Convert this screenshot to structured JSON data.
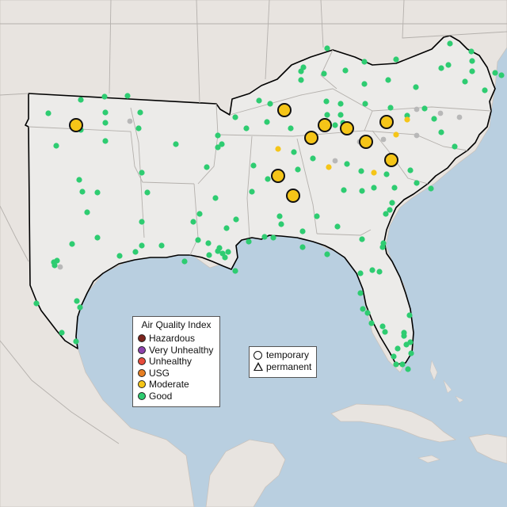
{
  "colors": {
    "water": "#b9cfe0",
    "land_outside": "#e8e4e0",
    "land_region": "#ecebe9",
    "good": "#2ecc71",
    "moderate": "#f5c518",
    "nodata": "#b8b8b8",
    "hazardous": "#7b241c",
    "very_unhealthy": "#8e44ad",
    "unhealthy": "#e74c3c",
    "usg": "#e67e22"
  },
  "legend": {
    "title": "Air Quality Index",
    "items": [
      {
        "label": "Hazardous",
        "color": "#7b241c"
      },
      {
        "label": "Very Unhealthy",
        "color": "#8e44ad"
      },
      {
        "label": "Unhealthy",
        "color": "#e74c3c"
      },
      {
        "label": "USG",
        "color": "#e67e22"
      },
      {
        "label": "Moderate",
        "color": "#f5c518"
      },
      {
        "label": "Good",
        "color": "#2ecc71"
      }
    ]
  },
  "monitor_types": {
    "temporary": "temporary",
    "permanent": "permanent"
  },
  "moderate_large": [
    [
      96,
      158
    ],
    [
      359,
      139
    ],
    [
      393,
      174
    ],
    [
      410,
      158
    ],
    [
      438,
      162
    ],
    [
      462,
      179
    ],
    [
      488,
      154
    ],
    [
      494,
      202
    ],
    [
      351,
      222
    ],
    [
      370,
      247
    ]
  ],
  "moderate_small": [
    [
      351,
      188
    ],
    [
      415,
      211
    ],
    [
      472,
      218
    ],
    [
      500,
      170
    ],
    [
      514,
      151
    ]
  ],
  "gray": [
    [
      164,
      153
    ],
    [
      76,
      337
    ],
    [
      423,
      203
    ],
    [
      454,
      179
    ],
    [
      484,
      176
    ],
    [
      556,
      143
    ],
    [
      580,
      148
    ],
    [
      526,
      171
    ],
    [
      526,
      138
    ]
  ],
  "good": [
    [
      132,
      122
    ],
    [
      161,
      121
    ],
    [
      102,
      126
    ],
    [
      61,
      143
    ],
    [
      133,
      142
    ],
    [
      177,
      142
    ],
    [
      133,
      155
    ],
    [
      102,
      164
    ],
    [
      71,
      184
    ],
    [
      133,
      178
    ],
    [
      175,
      162
    ],
    [
      222,
      182
    ],
    [
      179,
      218
    ],
    [
      100,
      227
    ],
    [
      104,
      242
    ],
    [
      123,
      243
    ],
    [
      186,
      243
    ],
    [
      110,
      268
    ],
    [
      179,
      280
    ],
    [
      123,
      300
    ],
    [
      179,
      310
    ],
    [
      91,
      308
    ],
    [
      151,
      323
    ],
    [
      171,
      318
    ],
    [
      204,
      310
    ],
    [
      233,
      330
    ],
    [
      250,
      303
    ],
    [
      263,
      307
    ],
    [
      72,
      329
    ],
    [
      68,
      331
    ],
    [
      69,
      335
    ],
    [
      46,
      383
    ],
    [
      97,
      380
    ],
    [
      101,
      388
    ],
    [
      78,
      420
    ],
    [
      96,
      431
    ],
    [
      261,
      211
    ],
    [
      275,
      171
    ],
    [
      280,
      182
    ],
    [
      275,
      186
    ],
    [
      297,
      148
    ],
    [
      311,
      162
    ],
    [
      327,
      127
    ],
    [
      341,
      131
    ],
    [
      380,
      101
    ],
    [
      380,
      90
    ],
    [
      383,
      85
    ],
    [
      409,
      93
    ],
    [
      413,
      61
    ],
    [
      436,
      89
    ],
    [
      460,
      106
    ],
    [
      460,
      78
    ],
    [
      500,
      75
    ],
    [
      490,
      101
    ],
    [
      568,
      55
    ],
    [
      595,
      65
    ],
    [
      596,
      77
    ],
    [
      596,
      90
    ],
    [
      587,
      103
    ],
    [
      612,
      114
    ],
    [
      625,
      92
    ],
    [
      633,
      95
    ],
    [
      566,
      82
    ],
    [
      525,
      110
    ],
    [
      557,
      86
    ],
    [
      412,
      128
    ],
    [
      430,
      131
    ],
    [
      461,
      131
    ],
    [
      493,
      136
    ],
    [
      514,
      146
    ],
    [
      536,
      137
    ],
    [
      548,
      150
    ],
    [
      557,
      167
    ],
    [
      574,
      185
    ],
    [
      518,
      215
    ],
    [
      544,
      238
    ],
    [
      526,
      231
    ],
    [
      488,
      220
    ],
    [
      456,
      216
    ],
    [
      438,
      207
    ],
    [
      395,
      200
    ],
    [
      376,
      214
    ],
    [
      337,
      154
    ],
    [
      413,
      145
    ],
    [
      367,
      162
    ],
    [
      371,
      192
    ],
    [
      320,
      209
    ],
    [
      318,
      242
    ],
    [
      338,
      226
    ],
    [
      272,
      250
    ],
    [
      298,
      277
    ],
    [
      252,
      270
    ],
    [
      244,
      280
    ],
    [
      275,
      317
    ],
    [
      277,
      313
    ],
    [
      281,
      320
    ],
    [
      288,
      318
    ],
    [
      297,
      342
    ],
    [
      286,
      288
    ],
    [
      284,
      325
    ],
    [
      264,
      322
    ],
    [
      314,
      305
    ],
    [
      334,
      299
    ],
    [
      345,
      300
    ],
    [
      382,
      292
    ],
    [
      382,
      312
    ],
    [
      413,
      321
    ],
    [
      426,
      286
    ],
    [
      434,
      240
    ],
    [
      457,
      241
    ],
    [
      472,
      237
    ],
    [
      498,
      237
    ],
    [
      495,
      256
    ],
    [
      492,
      265
    ],
    [
      487,
      270
    ],
    [
      484,
      307
    ],
    [
      457,
      302
    ],
    [
      455,
      345
    ],
    [
      470,
      341
    ],
    [
      479,
      343
    ],
    [
      483,
      312
    ],
    [
      455,
      370
    ],
    [
      458,
      390
    ],
    [
      464,
      395
    ],
    [
      469,
      408
    ],
    [
      483,
      412
    ],
    [
      486,
      419
    ],
    [
      517,
      398
    ],
    [
      510,
      420
    ],
    [
      518,
      432
    ],
    [
      502,
      440
    ],
    [
      519,
      446
    ],
    [
      510,
      424
    ],
    [
      513,
      435
    ],
    [
      497,
      450
    ],
    [
      508,
      460
    ],
    [
      515,
      466
    ],
    [
      500,
      460
    ],
    [
      353,
      273
    ],
    [
      355,
      283
    ],
    [
      400,
      273
    ],
    [
      433,
      155
    ],
    [
      423,
      158
    ],
    [
      430,
      145
    ]
  ]
}
